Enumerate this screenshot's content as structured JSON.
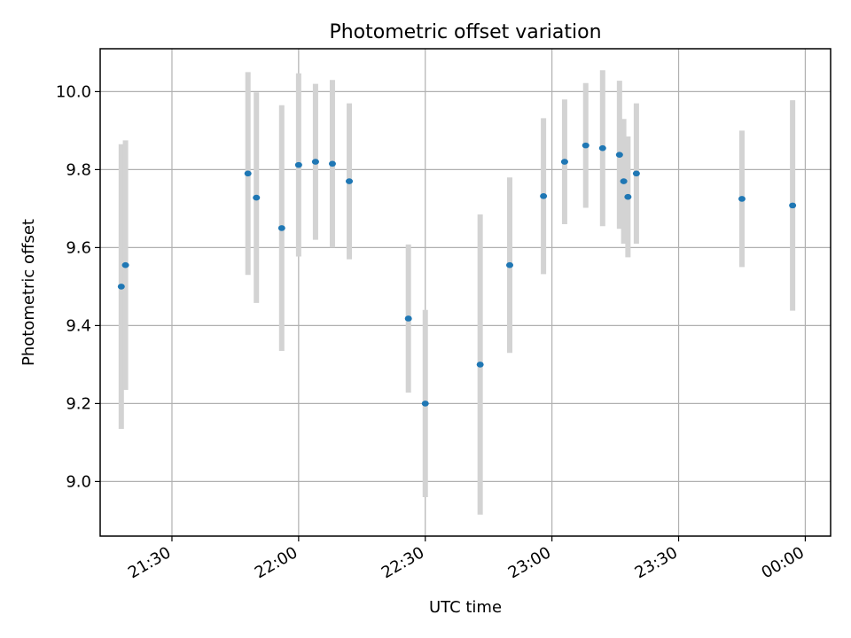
{
  "chart_data": {
    "type": "scatter",
    "title": "Photometric offset variation",
    "xlabel": "UTC time",
    "ylabel": "Photometric offset",
    "x_unit": "HH:MM UTC",
    "x_range": [
      "21:13",
      "00:06"
    ],
    "xticks": [
      "21:30",
      "22:00",
      "22:30",
      "23:00",
      "23:30",
      "00:00"
    ],
    "ylim": [
      8.86,
      10.11
    ],
    "yticks": [
      "9.0",
      "9.2",
      "9.4",
      "9.6",
      "9.8",
      "10.0"
    ],
    "grid": true,
    "colors": {
      "marker": "#1f77b4",
      "errorbar": "#d3d3d3",
      "grid": "#b0b0b0"
    },
    "points": [
      {
        "x": "21:18",
        "y": 9.5,
        "err": 0.365
      },
      {
        "x": "21:19",
        "y": 9.555,
        "err": 0.32
      },
      {
        "x": "21:48",
        "y": 9.79,
        "err": 0.26
      },
      {
        "x": "21:50",
        "y": 9.728,
        "err": 0.27
      },
      {
        "x": "21:56",
        "y": 9.65,
        "err": 0.315
      },
      {
        "x": "22:00",
        "y": 9.812,
        "err": 0.235
      },
      {
        "x": "22:04",
        "y": 9.82,
        "err": 0.2
      },
      {
        "x": "22:08",
        "y": 9.815,
        "err": 0.215
      },
      {
        "x": "22:12",
        "y": 9.77,
        "err": 0.2
      },
      {
        "x": "22:26",
        "y": 9.418,
        "err": 0.19
      },
      {
        "x": "22:30",
        "y": 9.2,
        "err": 0.24
      },
      {
        "x": "22:43",
        "y": 9.3,
        "err": 0.385
      },
      {
        "x": "22:50",
        "y": 9.555,
        "err": 0.225
      },
      {
        "x": "22:58",
        "y": 9.732,
        "err": 0.2
      },
      {
        "x": "23:03",
        "y": 9.82,
        "err": 0.16
      },
      {
        "x": "23:08",
        "y": 9.862,
        "err": 0.16
      },
      {
        "x": "23:12",
        "y": 9.855,
        "err": 0.2
      },
      {
        "x": "23:16",
        "y": 9.838,
        "err": 0.19
      },
      {
        "x": "23:17",
        "y": 9.77,
        "err": 0.16
      },
      {
        "x": "23:18",
        "y": 9.73,
        "err": 0.155
      },
      {
        "x": "23:20",
        "y": 9.79,
        "err": 0.18
      },
      {
        "x": "23:45",
        "y": 9.725,
        "err": 0.175
      },
      {
        "x": "23:57",
        "y": 9.708,
        "err": 0.27
      }
    ]
  }
}
